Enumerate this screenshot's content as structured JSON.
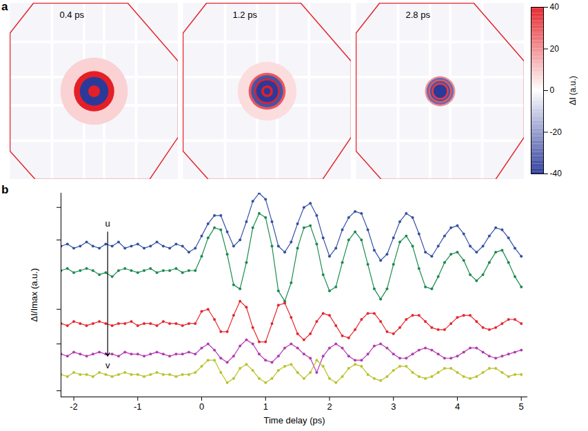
{
  "chart_data": [
    {
      "type": "image_panels",
      "panel": "a",
      "colorbar": {
        "label": "ΔI (a.u.)",
        "lim": [
          -40,
          40
        ],
        "ticks": [
          -40,
          -20,
          0,
          20,
          40
        ],
        "colors": [
          "#2b3a9a",
          "#ffffff",
          "#e41f26"
        ]
      },
      "images": [
        {
          "label": "0.4 ps",
          "rings": [
            {
              "radius": 0.4,
              "value": 8
            },
            {
              "radius": 0.24,
              "value": 40
            },
            {
              "radius": 0.17,
              "value": -40
            },
            {
              "radius": 0.07,
              "value": 40
            }
          ]
        },
        {
          "label": "1.2 ps",
          "rings": [
            {
              "radius": 0.35,
              "value": 6
            },
            {
              "radius": 0.22,
              "value": 30
            },
            {
              "radius": 0.19,
              "value": -35
            },
            {
              "radius": 0.15,
              "value": 40
            },
            {
              "radius": 0.13,
              "value": -40
            },
            {
              "radius": 0.07,
              "value": 40
            },
            {
              "radius": 0.04,
              "value": -40
            }
          ]
        },
        {
          "label": "2.8 ps",
          "rings": [
            {
              "radius": 0.18,
              "value": 20
            },
            {
              "radius": 0.16,
              "value": -30
            },
            {
              "radius": 0.14,
              "value": 30
            },
            {
              "radius": 0.12,
              "value": -35
            },
            {
              "radius": 0.1,
              "value": 35
            },
            {
              "radius": 0.08,
              "value": -40
            },
            {
              "radius": 0.05,
              "value": -40
            }
          ]
        }
      ]
    },
    {
      "type": "line",
      "panel": "b",
      "x_label": "Time delay (ps)",
      "y_label": "ΔI/Imax (a.u.)",
      "xlim": [
        -2.2,
        5.1
      ],
      "xticks": [
        -2,
        -1,
        0,
        1,
        2,
        3,
        4,
        5
      ],
      "ylim": [
        0,
        10
      ],
      "yticks": [
        0.3,
        2.6,
        4.3,
        7.7,
        9.3
      ],
      "tick_labels": "x",
      "grid": false,
      "x": [
        -2.2,
        -2.1,
        -2,
        -1.9,
        -1.8,
        -1.7,
        -1.6,
        -1.5,
        -1.4,
        -1.3,
        -1.2,
        -1.1,
        -1,
        -0.9,
        -0.8,
        -0.7,
        -0.6,
        -0.5,
        -0.4,
        -0.3,
        -0.2,
        -0.1,
        0,
        0.1,
        0.2,
        0.3,
        0.4,
        0.5,
        0.6,
        0.7,
        0.8,
        0.9,
        1,
        1.1,
        1.2,
        1.3,
        1.4,
        1.5,
        1.6,
        1.7,
        1.8,
        1.9,
        2,
        2.1,
        2.2,
        2.3,
        2.4,
        2.5,
        2.6,
        2.7,
        2.8,
        2.9,
        3,
        3.1,
        3.2,
        3.3,
        3.4,
        3.5,
        3.6,
        3.7,
        3.8,
        3.9,
        4,
        4.1,
        4.2,
        4.3,
        4.4,
        4.5,
        4.6,
        4.7,
        4.8,
        4.9,
        5
      ],
      "series": [
        {
          "color": "#3350a3",
          "marker": "circle",
          "line_style": "solid",
          "values": [
            7.4,
            7.5,
            7.3,
            7.4,
            7.6,
            7.4,
            7.3,
            7.5,
            7.4,
            7.6,
            7.3,
            7.4,
            7.5,
            7.3,
            7.4,
            7.6,
            7.4,
            7.3,
            7.5,
            7.4,
            7.1,
            7.3,
            7.9,
            8.5,
            8.9,
            8.9,
            8.1,
            7.4,
            7.7,
            8.6,
            9.6,
            10.0,
            9.7,
            8.6,
            7.4,
            7.1,
            7.6,
            8.5,
            9.3,
            9.5,
            8.9,
            7.8,
            6.9,
            7.3,
            8.2,
            8.8,
            9.1,
            9.0,
            8.2,
            7.2,
            6.7,
            7.0,
            7.8,
            8.6,
            9.0,
            8.8,
            8.0,
            7.1,
            6.9,
            7.4,
            7.9,
            8.3,
            8.4,
            8.0,
            7.4,
            7.1,
            7.4,
            7.9,
            8.3,
            8.2,
            7.8,
            7.3,
            6.9
          ]
        },
        {
          "color": "#1b8a50",
          "marker": "circle",
          "line_style": "solid",
          "values": [
            6.2,
            6.3,
            6.1,
            6.2,
            6.3,
            6.2,
            6.0,
            6.1,
            5.9,
            6.2,
            6.3,
            6.2,
            6.1,
            6.2,
            6.3,
            6.1,
            6.2,
            6.2,
            6.3,
            6.1,
            6.2,
            6.2,
            6.9,
            7.8,
            8.3,
            8.2,
            7.0,
            5.5,
            5.3,
            6.6,
            8.3,
            9.0,
            8.8,
            7.4,
            5.2,
            4.7,
            5.6,
            7.3,
            8.3,
            8.4,
            7.5,
            6.0,
            5.2,
            5.4,
            6.6,
            7.7,
            8.1,
            7.7,
            6.5,
            5.3,
            4.8,
            5.3,
            6.5,
            7.6,
            7.9,
            7.4,
            6.3,
            5.4,
            5.3,
            5.9,
            6.6,
            7.0,
            7.1,
            6.7,
            6.0,
            5.7,
            6.0,
            6.6,
            7.1,
            7.2,
            6.6,
            5.9,
            5.4
          ]
        },
        {
          "color": "#e5262e",
          "marker": "circle",
          "line_style": "solid",
          "values": [
            3.6,
            3.5,
            3.7,
            3.6,
            3.5,
            3.6,
            3.7,
            3.6,
            3.5,
            3.6,
            3.6,
            3.7,
            3.5,
            3.6,
            3.6,
            3.5,
            3.7,
            3.6,
            3.6,
            3.5,
            3.6,
            3.6,
            4.2,
            4.3,
            3.8,
            3.2,
            3.2,
            4.0,
            4.7,
            4.4,
            3.4,
            2.7,
            2.7,
            3.6,
            4.5,
            4.6,
            3.9,
            3.1,
            2.8,
            3.1,
            3.7,
            4.1,
            4.0,
            3.5,
            3.0,
            2.9,
            3.3,
            3.8,
            4.1,
            4.1,
            3.7,
            3.2,
            3.1,
            3.4,
            3.8,
            4.0,
            4.0,
            3.7,
            3.4,
            3.3,
            3.3,
            3.6,
            3.9,
            4.0,
            4.0,
            3.7,
            3.4,
            3.3,
            3.4,
            3.6,
            3.8,
            3.8,
            3.6
          ]
        },
        {
          "color": "#b23ab0",
          "marker": "circle",
          "line_style": "solid",
          "values": [
            2.1,
            2.0,
            2.2,
            2.1,
            2.0,
            2.1,
            2.2,
            2.1,
            2.1,
            2.0,
            2.2,
            2.1,
            2.1,
            2.0,
            2.1,
            2.2,
            2.1,
            2.0,
            2.1,
            2.1,
            2.2,
            2.1,
            2.4,
            2.6,
            2.3,
            1.9,
            1.7,
            2.0,
            2.5,
            2.8,
            2.6,
            2.1,
            1.8,
            1.7,
            2.0,
            2.4,
            2.6,
            2.4,
            2.1,
            1.9,
            1.2,
            2.0,
            2.4,
            2.6,
            2.4,
            2.0,
            1.8,
            1.8,
            2.1,
            2.5,
            2.6,
            2.4,
            2.1,
            1.9,
            1.9,
            2.1,
            2.3,
            2.4,
            2.3,
            2.1,
            1.9,
            1.9,
            2.0,
            2.2,
            2.4,
            2.4,
            2.2,
            2.0,
            1.9,
            2.0,
            2.1,
            2.2,
            2.3
          ]
        },
        {
          "color": "#b9c22a",
          "marker": "circle",
          "line_style": "solid",
          "values": [
            1.1,
            1.0,
            1.2,
            1.1,
            1.1,
            1.0,
            1.2,
            1.1,
            1.0,
            1.1,
            1.2,
            1.1,
            1.1,
            1.0,
            1.1,
            1.2,
            1.1,
            1.1,
            1.0,
            1.1,
            1.1,
            1.2,
            1.5,
            1.8,
            1.8,
            1.2,
            0.7,
            0.9,
            1.4,
            1.6,
            1.3,
            0.9,
            0.7,
            0.9,
            1.3,
            1.5,
            1.6,
            1.2,
            0.9,
            1.2,
            1.8,
            1.5,
            0.9,
            0.7,
            1.0,
            1.4,
            1.6,
            1.5,
            1.1,
            0.9,
            0.8,
            1.0,
            1.3,
            1.5,
            1.5,
            1.2,
            1.0,
            0.9,
            1.0,
            1.2,
            1.4,
            1.4,
            1.2,
            1.0,
            0.9,
            1.0,
            1.2,
            1.4,
            1.4,
            1.2,
            1.0,
            1.1,
            1.1
          ]
        }
      ],
      "annotations": [
        {
          "text": "u",
          "x": -1.47,
          "y": 8.5
        },
        {
          "text": "v",
          "x": -1.47,
          "y": 1.55
        }
      ],
      "arrow": {
        "x": -1.47,
        "y1": 8.1,
        "y2": 2.0
      }
    }
  ]
}
